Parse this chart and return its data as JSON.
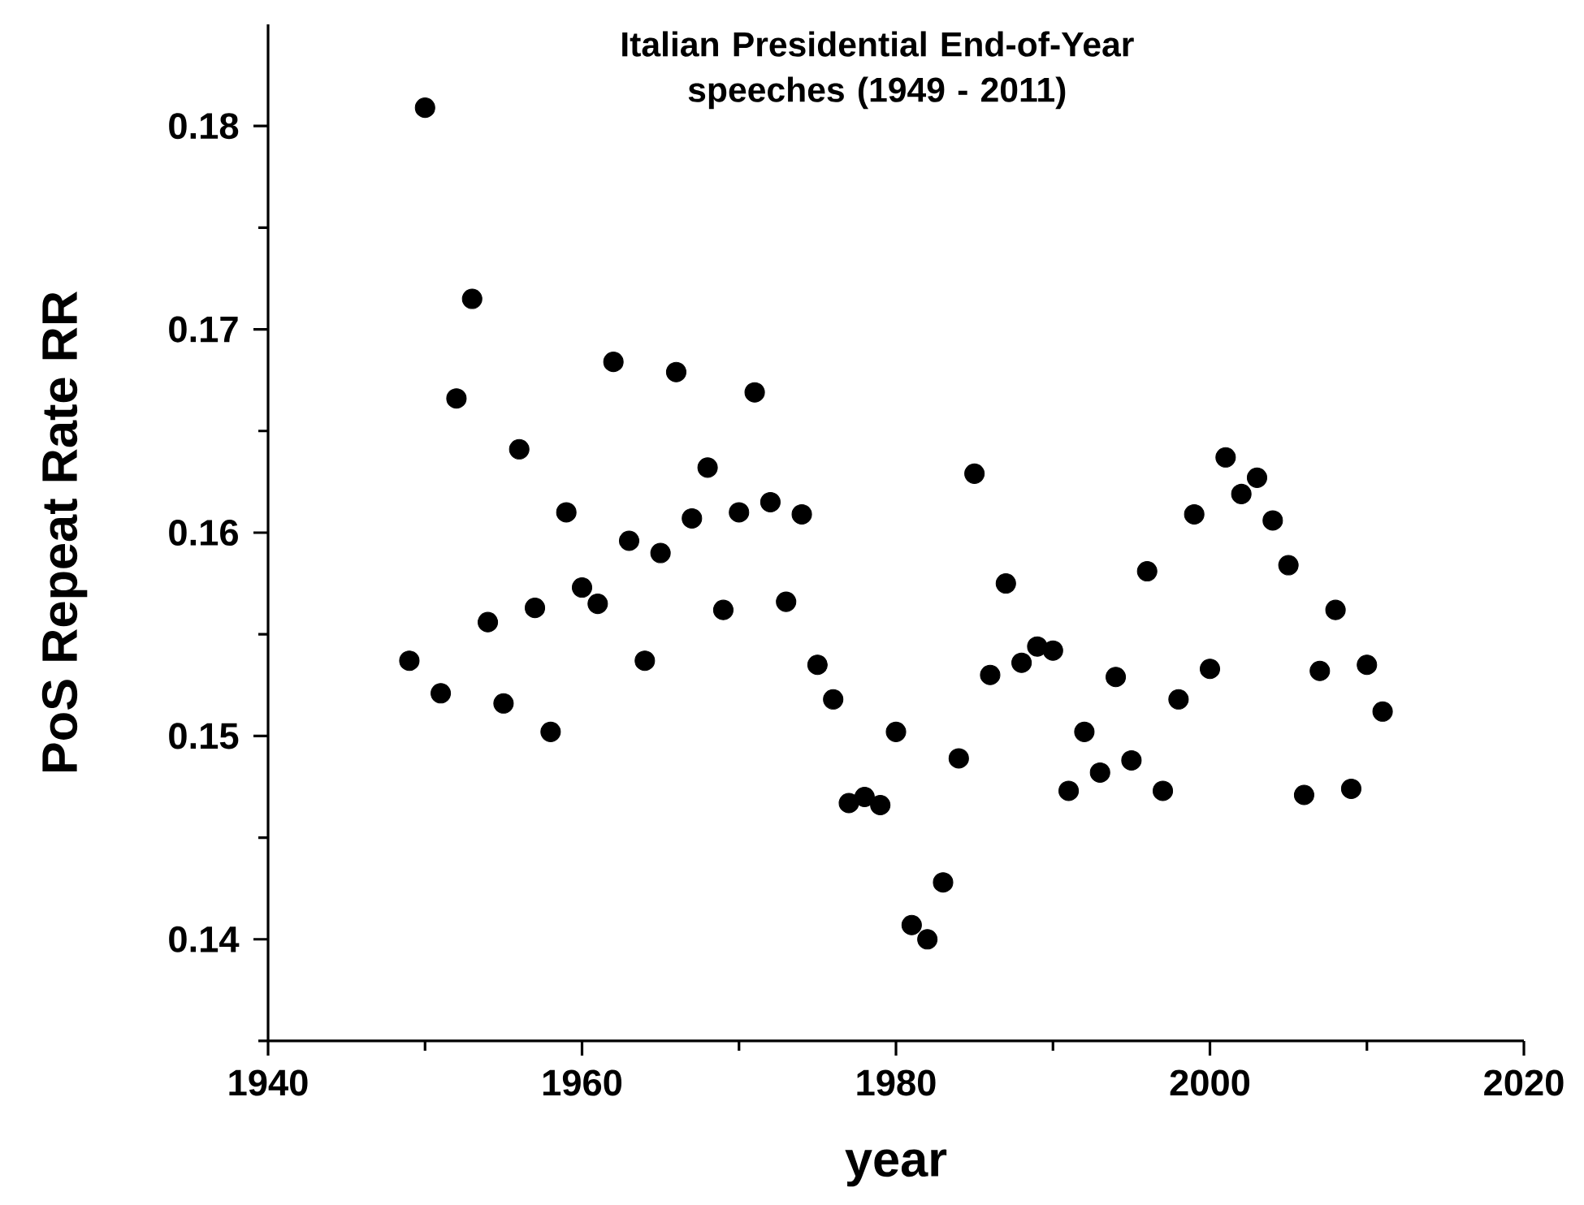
{
  "chart_data": {
    "type": "scatter",
    "title": "Italian Presidential End-of-Year speeches (1949 - 2011)",
    "xlabel": "year",
    "ylabel": "PoS Repeat Rate RR",
    "x": [
      1949,
      1950,
      1951,
      1952,
      1953,
      1954,
      1955,
      1956,
      1957,
      1958,
      1959,
      1960,
      1961,
      1962,
      1963,
      1964,
      1965,
      1966,
      1967,
      1968,
      1969,
      1970,
      1971,
      1972,
      1973,
      1974,
      1975,
      1976,
      1977,
      1978,
      1979,
      1980,
      1981,
      1982,
      1983,
      1984,
      1985,
      1986,
      1987,
      1988,
      1989,
      1990,
      1991,
      1992,
      1993,
      1994,
      1995,
      1996,
      1997,
      1998,
      1999,
      2000,
      2001,
      2002,
      2003,
      2004,
      2005,
      2006,
      2007,
      2008,
      2009,
      2010,
      2011
    ],
    "series": [
      {
        "color": "#000000",
        "values": [
          0.1537,
          0.1809,
          0.1521,
          0.1666,
          0.1715,
          0.1556,
          0.1516,
          0.1641,
          0.1563,
          0.1502,
          0.161,
          0.1573,
          0.1565,
          0.1684,
          0.1596,
          0.1537,
          0.159,
          0.1679,
          0.1607,
          0.1632,
          0.1562,
          0.161,
          0.1669,
          0.1615,
          0.1566,
          0.1609,
          0.1535,
          0.1518,
          0.1467,
          0.147,
          0.1466,
          0.1502,
          0.1407,
          0.14,
          0.1428,
          0.1489,
          0.1629,
          0.153,
          0.1575,
          0.1536,
          0.1544,
          0.1542,
          0.1473,
          0.1502,
          0.1482,
          0.1529,
          0.1488,
          0.1581,
          0.1473,
          0.1518,
          0.1609,
          0.1533,
          0.1637,
          0.1619,
          0.1627,
          0.1606,
          0.1584,
          0.1471,
          0.1532,
          0.1562,
          0.1474,
          0.1535,
          0.1512
        ]
      }
    ],
    "marker": "circle",
    "xlim": [
      1940,
      2020
    ],
    "xticks": [
      1940,
      {
        "value": 1950,
        "label": null
      },
      1960,
      {
        "value": 1970,
        "label": null
      },
      1980,
      {
        "value": 1990,
        "label": null
      },
      2000,
      {
        "value": 2010,
        "label": null
      },
      2020
    ],
    "ylim": [
      0.135,
      0.185
    ],
    "yticks": [
      {
        "value": 0.135,
        "label": null
      },
      0.14,
      {
        "value": 0.145,
        "label": null
      },
      0.15,
      {
        "value": 0.155,
        "label": null
      },
      0.16,
      {
        "value": 0.165,
        "label": null
      },
      0.17,
      {
        "value": 0.175,
        "label": null
      },
      0.18
    ]
  }
}
